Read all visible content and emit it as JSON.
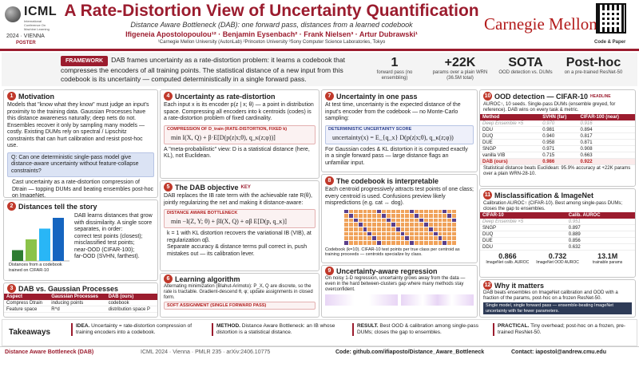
{
  "header": {
    "logo_name": "ICML",
    "logo_sub": "International Conference On Machine Learning",
    "venue": "2024 · VIENNA",
    "poster_tag": "POSTER",
    "title": "A Rate-Distortion View of Uncertainty Quantification",
    "subtitle": "Distance Aware Bottleneck (DAB): one forward pass, distances from a learned codebook",
    "authors": "Ifigeneia Apostolopoulou¹² · Benjamin Eysenbach² · Frank Nielsen³ · Artur Dubrawski¹",
    "affiliations": "¹Carnegie Mellon University (AutonLab) ²Princeton University ³Sony Computer Science Laboratories, Tokyo",
    "cmu": "Carnegie Mellon",
    "qr_label": "Code & Paper"
  },
  "framework": {
    "tag": "FRAMEWORK",
    "text": "DAB frames uncertainty as a rate-distortion problem: it learns a codebook that compresses the encoders of all training points. The statistical distance of a new input from this codebook is its uncertainty — computed deterministically in a single forward pass."
  },
  "stats": [
    {
      "value": "1",
      "desc": "forward pass (no ensembling)"
    },
    {
      "value": "+22K",
      "desc": "params over a plain WRN (36.5M total)"
    },
    {
      "value": "SOTA",
      "desc": "OOD detection vs. DUMs"
    },
    {
      "value": "Post-hoc",
      "desc": "on a pre-trained ResNet-50"
    }
  ],
  "s1": {
    "n": "1",
    "title": "Motivation",
    "body": "Models that \"know what they know\" must judge an input's proximity to the training data. Gaussian Processes have this distance awareness naturally; deep nets do not. Ensembles recover it only by sampling many models — costly. Existing DUMs rely on spectral / Lipschitz constraints that can hurt calibration and resist post-hoc use.",
    "question": "Q: Can one deterministic single-pass model give distance-aware uncertainty without feature-collapse constraints?",
    "bullet": "Cast uncertainty as a rate-distortion compression of Dtrain — topping DUMs and beating ensembles post-hoc on ImageNet."
  },
  "s2": {
    "n": "2",
    "title": "Distances tell the story",
    "body": "DAB learns distances that grow with dissimilarity. A single score separates, in order:",
    "items": [
      "correct test points (closest);",
      "misclassified test points;",
      "near-OOD (CIFAR-100);",
      "far-OOD (SVHN, farthest)."
    ],
    "caption": "Distances from a codebook trained on CIFAR-10"
  },
  "s3": {
    "n": "3",
    "title": "DAB vs. Gaussian Processes",
    "headers": [
      "Aspect",
      "Gaussian Processes",
      "DAB (ours)"
    ],
    "rows": [
      [
        "Compress Dtrain",
        "inducing points",
        "codebook"
      ],
      [
        "Feature space",
        "R^d",
        "distribution space P"
      ],
      [
        "Distance",
        "Euclidean norm",
        "statistical distance"
      ]
    ],
    "body": "DAB builds on the Information Bottleneck instead of GP kernels — simple to train, and applicable to both classification and regression."
  },
  "s4": {
    "n": "4",
    "title": "Uncertainty as rate-distortion",
    "body": "Each input x is its encoder p(z | x; θ) — a point in distribution space. Compressing all encoders into k centroids (codes) is a rate-distortion problem of fixed cardinality.",
    "flabel": "COMPRESSION OF D_train (RATE-DISTORTION, FIXED k)",
    "formula": "min I(X, Q) + β·E[D(p(z|x;θ), q_κ(z;φ))]",
    "note": "A \"meta-probabilistic\" view: D is a statistical distance (here, KL), not Euclidean."
  },
  "s5": {
    "n": "5",
    "title": "The DAB objective",
    "tag": "KEY",
    "body": "DAB replaces the IB rate term with the achievable rate R(θ), jointly regularizing the net and making it distance-aware:",
    "flabel": "DISTANCE AWARE BOTTLENECK",
    "formula": "min −I(Z, Y; θ) + βI(X, Q) + αβ E[D(p, q_κ)]",
    "bullets": [
      "k = 1 with KL distortion recovers the variational IB (VIB), at regularization αβ.",
      "Separate accuracy & distance terms pull correct in, push mistakes out — its calibration lever."
    ]
  },
  "s6": {
    "n": "6",
    "title": "Learning algorithm",
    "body": "Alternating minimization (Blahut-Arimoto): P_X, Q are discrete, so the rate is tractable. Gradient-descend θ, φ; update assignments in closed form.",
    "flabel": "SOFT ASSIGNMENT (SINGLE FORWARD PASS)",
    "formula": "π_x(κ) ∝ π(κ) exp(−αD(p(z|x;θ), q_κ(z;φ)))",
    "note": "Each input is softly matched to the closest code."
  },
  "s7": {
    "n": "7",
    "title": "Uncertainty in one pass",
    "body": "At test time, uncertainty is the expected distance of the input's encoder from the codebook — no Monte-Carlo sampling:",
    "flabel": "DETERMINISTIC UNCERTAINTY SCORE",
    "formula": "uncertainty(x) = E_{q_x} D(p(z|x;θ), q_κ(z;φ))",
    "note": "For Gaussian codes & KL distortion it is computed exactly in a single forward pass — large distance flags an unfamiliar input."
  },
  "s8": {
    "n": "8",
    "title": "The codebook is interpretable",
    "body": "Each centroid progressively attracts test points of one class; every centroid is used. Confusions preview likely mispredictions (e.g. cat ↔ dog).",
    "caption": "Codebook (k=10). CIFAR-10 test points per true class per centroid as training proceeds — centroids specialize by class."
  },
  "s9": {
    "n": "9",
    "title": "Uncertainty-aware regression",
    "body": "On noisy 1-D regression, uncertainty grows away from the data — even in the hard between-clusters gap where many methods stay overconfident.",
    "caption": "Left: one cluster. Right: two clusters — truth stays within ±2σ the score."
  },
  "s10": {
    "n": "10",
    "title": "OOD detection — CIFAR-10",
    "tag": "HEADLINE",
    "body": "AUROC↑, 10 seeds. Single-pass DUMs (ensemble greyed, for reference). DAB wins on every task & metric.",
    "headers": [
      "Method",
      "SVHN (far)",
      "CIFAR-100 (near)"
    ],
    "rows": [
      [
        "Deep Ensemble ×5",
        "0.970",
        "0.916"
      ],
      [
        "DDU",
        "0.981",
        "0.894"
      ],
      [
        "DUQ",
        "0.940",
        "0.817"
      ],
      [
        "DUE",
        "0.958",
        "0.871"
      ],
      [
        "SNGP",
        "0.971",
        "0.908"
      ],
      [
        "vanilla VIB",
        "0.715",
        "0.663"
      ],
      [
        "DAB (ours)",
        "0.986",
        "0.922"
      ]
    ],
    "note": "Statistical distance beats Euclidean: 95.9% accuracy at +22K params over a plain WRN-28-10."
  },
  "s11": {
    "n": "11",
    "title": "Misclassification & ImageNet",
    "body": "Calibration AUROC↑ (CIFAR-10). Best among single-pass DUMs; closes the gap to ensembles.",
    "headers": [
      "CIFAR-10",
      "Calib. AUROC"
    ],
    "rows": [
      [
        "Deep Ensemble ×5",
        "0.951"
      ],
      [
        "SNGP",
        "0.897"
      ],
      [
        "DUQ",
        "0.889"
      ],
      [
        "DUE",
        "0.856"
      ],
      [
        "DDU",
        "0.632"
      ],
      [
        "DAB (ours)",
        "0.930"
      ]
    ],
    "metrics": [
      {
        "value": "0.866",
        "label": "ImageNet calib. AUROC"
      },
      {
        "value": "0.732",
        "label": "ImageNet OOD AUROC"
      },
      {
        "value": "13.1M",
        "label": "trainable params"
      }
    ]
  },
  "s12": {
    "n": "12",
    "title": "Why it matters",
    "body": "DAB beats ensembles on ImageNet calibration and OOD with a fraction of the params, post-hoc on a frozen ResNet-50.",
    "highlight": "Single model, single forward pass — ensemble-beating ImageNet uncertainty with far fewer parameters."
  },
  "takeaways": {
    "label": "Takeaways",
    "items": [
      {
        "tag": "IDEA.",
        "text": "Uncertainty = rate-distortion compression of training encoders into a codebook."
      },
      {
        "tag": "METHOD.",
        "text": "Distance Aware Bottleneck: an IB whose distortion is a statistical distance."
      },
      {
        "tag": "RESULT.",
        "text": "Best OOD & calibration among single-pass DUMs; closes the gap to ensembles."
      },
      {
        "tag": "PRACTICAL.",
        "text": "Tiny overhead; post-hoc on a frozen, pre-trained ResNet-50."
      }
    ]
  },
  "footer": {
    "left": "Distance Aware Bottleneck (DAB)",
    "mid": "ICML 2024 · Vienna · PMLR 235 · arXiv:2406.10775",
    "code": "Code: github.com/ifiaposto/Distance_Aware_Bottleneck",
    "contact": "Contact: iapostol@andrew.cmu.edu"
  },
  "chart_data": {
    "type": "bar",
    "categories": [
      "correct",
      "misclassified",
      "near-OOD",
      "far-OOD"
    ],
    "values": [
      1,
      2,
      3,
      4
    ],
    "colors": [
      "#2e7d32",
      "#8bc34a",
      "#29b6f6",
      "#1565c0"
    ],
    "title": "",
    "xlabel": "",
    "ylabel": ""
  }
}
